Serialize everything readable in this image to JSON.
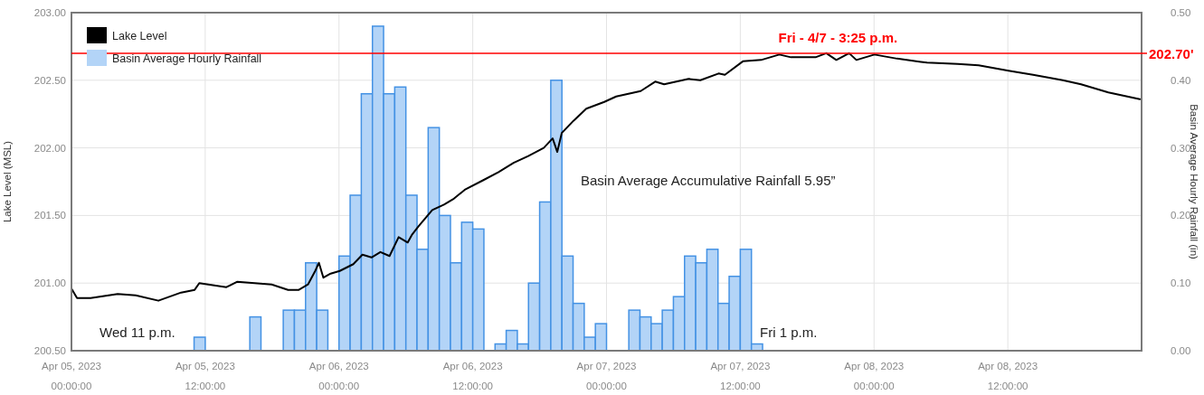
{
  "chart_data": {
    "type": "line",
    "ylabel": "Lake Level (MSL)",
    "y2label": "Basin Average Hourly Rainfall (in)",
    "xlim": [
      "2023-04-05T00:00",
      "2023-04-09T00:00"
    ],
    "xticks": [
      {
        "value": "2023-04-05T00:00",
        "label": "Apr 05, 2023\n00:00:00"
      },
      {
        "value": "2023-04-05T12:00",
        "label": "Apr 05, 2023\n12:00:00"
      },
      {
        "value": "2023-04-06T00:00",
        "label": "Apr 06, 2023\n00:00:00"
      },
      {
        "value": "2023-04-06T12:00",
        "label": "Apr 06, 2023\n12:00:00"
      },
      {
        "value": "2023-04-07T00:00",
        "label": "Apr 07, 2023\n00:00:00"
      },
      {
        "value": "2023-04-07T12:00",
        "label": "Apr 07, 2023\n12:00:00"
      },
      {
        "value": "2023-04-08T00:00",
        "label": "Apr 08, 2023\n00:00:00"
      },
      {
        "value": "2023-04-08T12:00",
        "label": "Apr 08, 2023\n12:00:00"
      }
    ],
    "ylim": [
      200.5,
      203.0
    ],
    "yticks": [
      {
        "value": 200.5,
        "label": "200.50"
      },
      {
        "value": 201.0,
        "label": "201.00"
      },
      {
        "value": 201.5,
        "label": "201.50"
      },
      {
        "value": 202.0,
        "label": "202.00"
      },
      {
        "value": 202.5,
        "label": "202.50"
      },
      {
        "value": 203.0,
        "label": "203.00"
      }
    ],
    "y2lim": [
      0,
      0.5
    ],
    "y2ticks": [
      {
        "value": 0,
        "label": "0.00"
      },
      {
        "value": 0.1,
        "label": "0.10"
      },
      {
        "value": 0.2,
        "label": "0.20"
      },
      {
        "value": 0.3,
        "label": "0.30"
      },
      {
        "value": 0.4,
        "label": "0.40"
      },
      {
        "value": 0.5,
        "label": "0.50"
      }
    ],
    "grid": true,
    "legend": "top left",
    "series": [
      {
        "name": "Lake Level",
        "color": "#000000",
        "x": [
          "2023-04-05T00:00",
          "2023-04-05T00:30",
          "2023-04-05T01:43",
          "2023-04-05T04:09",
          "2023-04-05T05:46",
          "2023-04-05T07:48",
          "2023-04-05T09:50",
          "2023-04-05T11:03",
          "2023-04-05T11:28",
          "2023-04-05T13:54",
          "2023-04-05T14:53",
          "2023-04-05T17:58",
          "2023-04-05T19:26",
          "2023-04-05T20:24",
          "2023-04-05T21:13",
          "2023-04-05T21:52",
          "2023-04-05T22:12",
          "2023-04-05T22:36",
          "2023-04-05T23:15",
          "2023-04-06T00:04",
          "2023-04-06T01:17",
          "2023-04-06T02:06",
          "2023-04-06T02:55",
          "2023-04-06T03:43",
          "2023-04-06T04:32",
          "2023-04-06T05:21",
          "2023-04-06T06:10",
          "2023-04-06T06:34",
          "2023-04-06T07:08",
          "2023-04-06T08:22",
          "2023-04-06T09:25",
          "2023-04-06T10:14",
          "2023-04-06T11:17",
          "2023-04-06T12:55",
          "2023-04-06T14:17",
          "2023-04-06T15:40",
          "2023-04-06T16:59",
          "2023-04-06T18:22",
          "2023-04-06T19:10",
          "2023-04-06T19:35",
          "2023-04-06T19:59",
          "2023-04-06T21:02",
          "2023-04-06T22:11",
          "2023-04-06T23:48",
          "2023-04-07T00:52",
          "2023-04-07T03:04",
          "2023-04-07T04:22",
          "2023-04-07T05:10",
          "2023-04-07T07:22",
          "2023-04-07T08:25",
          "2023-04-07T10:03",
          "2023-04-07T10:37",
          "2023-04-07T12:14",
          "2023-04-07T13:52",
          "2023-04-07T15:30",
          "2023-04-07T16:33",
          "2023-04-07T18:45",
          "2023-04-07T19:43",
          "2023-04-07T20:37",
          "2023-04-07T21:46",
          "2023-04-07T22:25",
          "2023-04-08T00:02",
          "2023-04-08T02:04",
          "2023-04-08T04:45",
          "2023-04-08T07:31",
          "2023-04-08T09:23",
          "2023-04-08T12:04",
          "2023-04-08T14:16",
          "2023-04-08T16:56",
          "2023-04-08T18:34",
          "2023-04-08T21:01",
          "2023-04-08T23:51"
        ],
        "values": [
          200.96,
          200.89,
          200.89,
          200.92,
          200.91,
          200.87,
          200.93,
          200.95,
          201.0,
          200.97,
          201.01,
          200.99,
          200.95,
          200.95,
          200.99,
          201.09,
          201.15,
          201.04,
          201.07,
          201.09,
          201.14,
          201.21,
          201.19,
          201.23,
          201.2,
          201.34,
          201.3,
          201.36,
          201.42,
          201.54,
          201.58,
          201.62,
          201.69,
          201.76,
          201.82,
          201.89,
          201.94,
          202.0,
          202.07,
          201.97,
          202.11,
          202.2,
          202.29,
          202.34,
          202.38,
          202.42,
          202.49,
          202.47,
          202.51,
          202.5,
          202.55,
          202.54,
          202.64,
          202.65,
          202.69,
          202.67,
          202.67,
          202.7,
          202.65,
          202.7,
          202.65,
          202.69,
          202.66,
          202.63,
          202.62,
          202.61,
          202.57,
          202.54,
          202.5,
          202.47,
          202.41,
          202.36
        ]
      },
      {
        "name": "Basin Average Hourly Rainfall",
        "type": "bar",
        "axis": "y2",
        "color": "#b3d4f7",
        "x": [
          "2023-04-05T00:30",
          "2023-04-05T01:30",
          "2023-04-05T02:30",
          "2023-04-05T03:30",
          "2023-04-05T04:30",
          "2023-04-05T05:30",
          "2023-04-05T06:30",
          "2023-04-05T07:30",
          "2023-04-05T08:30",
          "2023-04-05T09:30",
          "2023-04-05T10:30",
          "2023-04-05T11:30",
          "2023-04-05T12:30",
          "2023-04-05T13:30",
          "2023-04-05T14:30",
          "2023-04-05T15:30",
          "2023-04-05T16:30",
          "2023-04-05T17:30",
          "2023-04-05T18:30",
          "2023-04-05T19:30",
          "2023-04-05T20:30",
          "2023-04-05T21:30",
          "2023-04-05T22:30",
          "2023-04-05T23:30",
          "2023-04-06T00:30",
          "2023-04-06T01:30",
          "2023-04-06T02:30",
          "2023-04-06T03:30",
          "2023-04-06T04:30",
          "2023-04-06T05:30",
          "2023-04-06T06:30",
          "2023-04-06T07:30",
          "2023-04-06T08:30",
          "2023-04-06T09:30",
          "2023-04-06T10:30",
          "2023-04-06T11:30",
          "2023-04-06T12:30",
          "2023-04-06T13:30",
          "2023-04-06T14:30",
          "2023-04-06T15:30",
          "2023-04-06T16:30",
          "2023-04-06T17:30",
          "2023-04-06T18:30",
          "2023-04-06T19:30",
          "2023-04-06T20:30",
          "2023-04-06T21:30",
          "2023-04-06T22:30",
          "2023-04-06T23:30",
          "2023-04-07T00:30",
          "2023-04-07T01:30",
          "2023-04-07T02:30",
          "2023-04-07T03:30",
          "2023-04-07T04:30",
          "2023-04-07T05:30",
          "2023-04-07T06:30",
          "2023-04-07T07:30",
          "2023-04-07T08:30",
          "2023-04-07T09:30",
          "2023-04-07T10:30",
          "2023-04-07T11:30",
          "2023-04-07T12:30",
          "2023-04-07T13:30",
          "2023-04-07T14:30",
          "2023-04-07T15:30",
          "2023-04-07T16:30",
          "2023-04-07T17:30",
          "2023-04-07T18:30",
          "2023-04-07T19:30",
          "2023-04-07T20:30",
          "2023-04-07T21:30",
          "2023-04-07T22:30",
          "2023-04-07T23:30",
          "2023-04-08T00:30",
          "2023-04-08T01:30",
          "2023-04-08T02:30",
          "2023-04-08T03:30",
          "2023-04-08T04:30",
          "2023-04-08T05:30",
          "2023-04-08T06:30",
          "2023-04-08T07:30",
          "2023-04-08T08:30",
          "2023-04-08T09:30",
          "2023-04-08T10:30",
          "2023-04-08T11:30",
          "2023-04-08T12:30",
          "2023-04-08T13:30",
          "2023-04-08T14:30",
          "2023-04-08T15:30",
          "2023-04-08T16:30",
          "2023-04-08T17:30",
          "2023-04-08T18:30",
          "2023-04-08T19:30",
          "2023-04-08T20:30",
          "2023-04-08T21:30",
          "2023-04-08T22:30",
          "2023-04-08T23:30"
        ],
        "values": [
          0,
          0,
          0,
          0,
          0,
          0,
          0,
          0,
          0,
          0,
          0,
          0.02,
          0,
          0,
          0,
          0,
          0.05,
          0,
          0,
          0.06,
          0.06,
          0.13,
          0.06,
          0,
          0.14,
          0.23,
          0.38,
          0.48,
          0.38,
          0.39,
          0.23,
          0.15,
          0.33,
          0.2,
          0.13,
          0.19,
          0.18,
          0,
          0.01,
          0.03,
          0.01,
          0.1,
          0.22,
          0.4,
          0.14,
          0.07,
          0.02,
          0.04,
          0,
          0,
          0.06,
          0.05,
          0.04,
          0.06,
          0.08,
          0.14,
          0.13,
          0.15,
          0.07,
          0.11,
          0.15,
          0.01,
          0,
          0,
          0,
          0,
          0,
          0,
          0,
          0,
          0,
          0,
          0,
          0,
          0,
          0,
          0,
          0,
          0,
          0,
          0,
          0,
          0,
          0,
          0,
          0,
          0,
          0,
          0,
          0,
          0,
          0,
          0,
          0,
          0,
          0
        ]
      }
    ],
    "ref_lines": [
      {
        "axis": "y",
        "value": 202.7,
        "label": "202.70'",
        "color": "#ff0000"
      }
    ],
    "annotations": [
      "Wed 11 p.m.",
      "Basin Average Accumulative Rainfall 5.95”",
      "Fri 1 p.m.",
      {
        "text": "Fri - 4/7 - 3:25 p.m.",
        "x": "2023-04-07T15:25",
        "y": 202.7
      }
    ]
  }
}
